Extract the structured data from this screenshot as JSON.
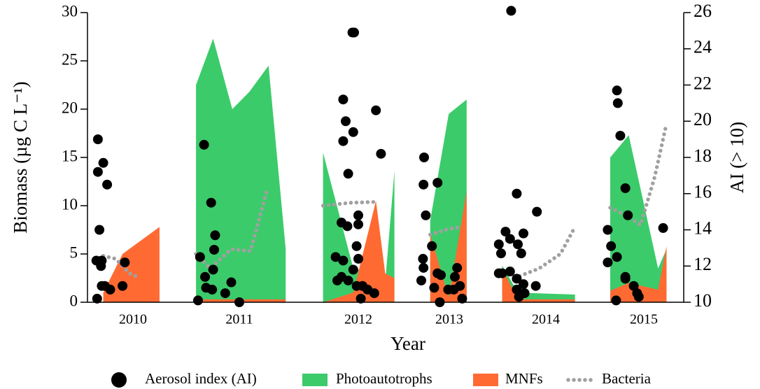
{
  "chart_data": {
    "type": "area",
    "x_label": "Year",
    "y_label": "Biomass (µg C L⁻¹)",
    "y2_label": "AI (> 10)",
    "categories": [
      "2010",
      "2011",
      "2012",
      "2013",
      "2014",
      "2015"
    ],
    "ylim": [
      0,
      30
    ],
    "yticks": [
      0,
      5,
      10,
      15,
      20,
      25,
      30
    ],
    "y2lim": [
      10,
      26
    ],
    "y2ticks": [
      10,
      12,
      14,
      16,
      18,
      20,
      22,
      24,
      26
    ],
    "series": [
      {
        "name": "Aerosol index (AI)",
        "type": "scatter",
        "axis": "y2",
        "color": "#000000",
        "x": [
          2010.09,
          2010.09,
          2010.16,
          2010.21,
          2010.11,
          2010.07,
          2010.14,
          2010.13,
          2010.14,
          2010.18,
          2010.25,
          2010.44,
          2010.41,
          2010.08,
          2011.15,
          2011.22,
          2011.26,
          2011.25,
          2011.11,
          2011.16,
          2011.24,
          2011.17,
          2011.23,
          2011.36,
          2011.42,
          2011.09,
          2011.5,
          2012.32,
          2012.43,
          2012.45,
          2012.35,
          2012.32,
          2012.44,
          2012.71,
          2012.77,
          2012.38,
          2012.3,
          2012.37,
          2012.5,
          2012.5,
          2012.48,
          2012.23,
          2012.32,
          2012.5,
          2012.44,
          2012.3,
          2012.38,
          2012.48,
          2012.55,
          2012.61,
          2012.69,
          2012.53,
          2012.25,
          2013.05,
          2013.04,
          2013.29,
          2013.08,
          2013.19,
          2013.03,
          2013.04,
          2013.0,
          2013.29,
          2013.35,
          2013.64,
          2013.6,
          2013.69,
          2013.23,
          2013.48,
          2013.58,
          2013.73,
          2013.33,
          2014.19,
          2014.24,
          2014.42,
          2014.14,
          2014.3,
          2014.18,
          2014.25,
          2014.08,
          2014.1,
          2014.28,
          2014.11,
          2014.18,
          2014.24,
          2014.3,
          2014.24,
          2014.08,
          2014.26,
          2014.41,
          2014.31,
          2015.18,
          2015.19,
          2015.22,
          2015.28,
          2015.31,
          2015.07,
          2015.11,
          2015.07,
          2015.18,
          2015.28,
          2015.28,
          2015.38,
          2015.42,
          2015.44,
          2015.73,
          2015.17
        ],
        "values": [
          19.0,
          17.2,
          17.7,
          16.5,
          14.0,
          12.3,
          12.3,
          12.0,
          10.9,
          10.9,
          10.7,
          12.2,
          10.9,
          10.2,
          18.7,
          15.5,
          13.7,
          12.9,
          12.5,
          11.4,
          11.8,
          10.8,
          10.7,
          10.5,
          11.1,
          10.1,
          10.0,
          21.2,
          24.9,
          24.9,
          20.0,
          18.9,
          19.4,
          20.6,
          18.2,
          17.1,
          14.4,
          14.2,
          14.8,
          14.3,
          13.1,
          12.5,
          12.3,
          12.4,
          11.8,
          11.4,
          11.2,
          10.9,
          10.9,
          10.7,
          10.5,
          10.2,
          11.2,
          18.0,
          16.5,
          16.6,
          14.8,
          13.1,
          12.4,
          11.9,
          11.2,
          11.6,
          11.5,
          11.9,
          11.4,
          10.9,
          10.8,
          10.7,
          10.7,
          10.2,
          10.0,
          26.1,
          16.0,
          15.0,
          13.9,
          13.8,
          13.5,
          13.2,
          13.2,
          12.7,
          12.7,
          11.6,
          11.7,
          11.3,
          11.0,
          10.7,
          11.6,
          10.3,
          10.9,
          10.5,
          21.7,
          21.0,
          19.2,
          16.3,
          14.8,
          14.0,
          13.1,
          12.2,
          12.5,
          11.4,
          11.3,
          10.9,
          10.5,
          10.3,
          14.1,
          10.1
        ]
      },
      {
        "name": "Photoautotrophs",
        "type": "area",
        "color": "#3ccb6a",
        "x": [
          2010.16,
          2010.41,
          2010.89,
          2011.07,
          2011.24,
          2011.43,
          2011.6,
          2011.79,
          2011.96,
          2012.08,
          2012.44,
          2012.71,
          2012.82,
          2012.93,
          2013.16,
          2013.49,
          2013.81,
          2014.11,
          2014.25,
          2014.76,
          2015.1,
          2015.32,
          2015.67,
          2015.77
        ],
        "values": [
          0.8,
          0.8,
          0.8,
          22.5,
          27.3,
          20,
          21.8,
          24.5,
          5.5,
          15.5,
          3.5,
          3,
          2,
          13.6,
          8.5,
          19.5,
          21,
          3.8,
          1,
          0.8,
          15,
          17.3,
          3.5,
          5.5
        ]
      },
      {
        "name": "MNFs",
        "type": "area",
        "color": "#ff6a33",
        "x": [
          2010.16,
          2010.41,
          2010.89,
          2011.07,
          2011.24,
          2011.43,
          2011.6,
          2011.79,
          2011.96,
          2012.08,
          2012.44,
          2012.71,
          2012.82,
          2012.93,
          2013.16,
          2013.49,
          2013.81,
          2014.11,
          2014.25,
          2014.76,
          2015.1,
          2015.32,
          2015.67,
          2015.77
        ],
        "values": [
          1,
          5,
          7.8,
          0.3,
          0.3,
          0.3,
          0.3,
          0.3,
          0.3,
          0,
          1,
          10.5,
          3,
          2.5,
          7,
          0.5,
          11.5,
          3.5,
          0.3,
          0.3,
          1.2,
          2,
          1.3,
          5.8
        ]
      },
      {
        "name": "Bacteria",
        "type": "line",
        "style": "dotted",
        "color": "#a0a0a0",
        "x": [
          2010.16,
          2010.32,
          2010.5,
          2010.64,
          2011.07,
          2011.21,
          2011.42,
          2011.61,
          2011.78,
          2012.08,
          2012.4,
          2012.73,
          2013.16,
          2013.49,
          2013.73,
          2014.22,
          2014.44,
          2014.63,
          2014.76,
          2015.1,
          2015.33,
          2015.46,
          2015.63,
          2015.77
        ],
        "values": [
          4.8,
          4.5,
          3,
          2.5,
          5,
          3.5,
          5.5,
          5.3,
          11.8,
          10,
          10.3,
          10.4,
          7,
          7.6,
          7.8,
          2.5,
          3.5,
          5,
          7.8,
          9.8,
          8.8,
          8,
          13,
          18.5
        ]
      }
    ]
  }
}
